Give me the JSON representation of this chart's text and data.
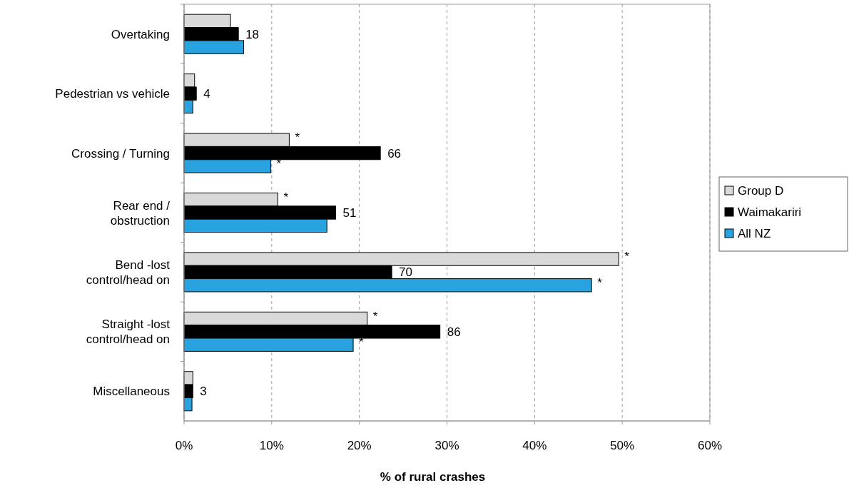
{
  "chart_data": {
    "type": "bar",
    "orientation": "horizontal",
    "xlabel": "% of rural crashes",
    "categories": [
      "Overtaking",
      "Pedestrian vs vehicle",
      "Crossing / Turning",
      "Rear end / obstruction",
      "Bend -lost control/head on",
      "Straight -lost control/head on",
      "Miscellaneous"
    ],
    "series": [
      {
        "name": "Group D",
        "color": "#d9d9d9",
        "values": [
          5.3,
          1.2,
          12.0,
          10.7,
          49.6,
          20.9,
          1.0
        ],
        "value_labels": [
          null,
          null,
          "*",
          "*",
          "*",
          "*",
          null
        ]
      },
      {
        "name": "Waimakariri",
        "color": "#000000",
        "values": [
          6.2,
          1.4,
          22.4,
          17.3,
          23.7,
          29.2,
          1.0
        ]
      },
      {
        "name": "All NZ",
        "color": "#29a3e0",
        "values": [
          6.8,
          1.0,
          9.9,
          16.3,
          46.5,
          19.3,
          0.9
        ],
        "value_labels": [
          null,
          null,
          "*",
          null,
          "*",
          "*",
          null
        ]
      }
    ],
    "annotations": [
      "18",
      "4",
      "66",
      "51",
      "70",
      "86",
      "3"
    ],
    "xlim": [
      0,
      60
    ],
    "xticks": [
      {
        "value": 0,
        "label": "0%"
      },
      {
        "value": 10,
        "label": "10%"
      },
      {
        "value": 20,
        "label": "20%"
      },
      {
        "value": 30,
        "label": "30%"
      },
      {
        "value": 40,
        "label": "40%"
      },
      {
        "value": 50,
        "label": "50%"
      },
      {
        "value": 60,
        "label": "60%"
      }
    ],
    "grid": "x",
    "legend": "right"
  }
}
